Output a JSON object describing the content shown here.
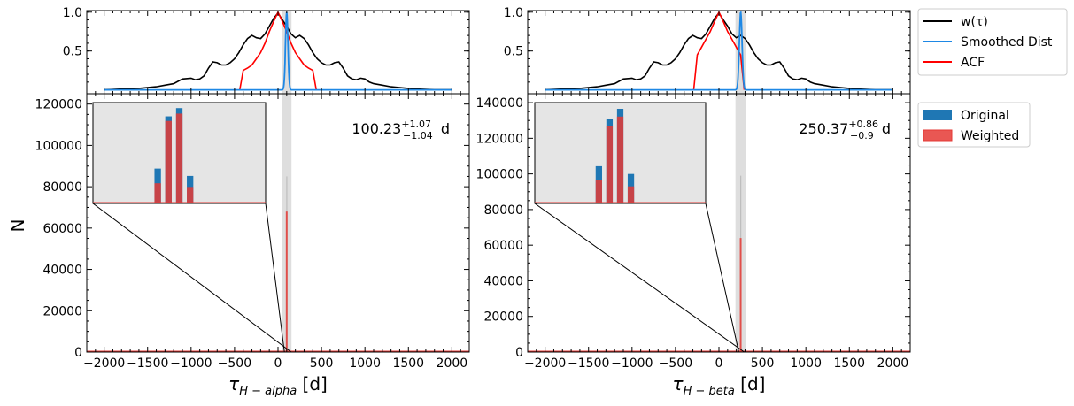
{
  "colors": {
    "wtau": "#000000",
    "smoothed": "#1e88e5",
    "acf": "#ff0000",
    "original": "#1f77b4",
    "weighted": "#e53935",
    "shade": "#d0d0d0",
    "inset_bg": "#e5e5e5"
  },
  "legend_top": [
    {
      "key": "wtau",
      "label": "w(τ)"
    },
    {
      "key": "smoothed",
      "label": "Smoothed Dist"
    },
    {
      "key": "acf",
      "label": "ACF"
    }
  ],
  "legend_bottom": [
    {
      "key": "original",
      "label": "Original"
    },
    {
      "key": "weighted",
      "label": "Weighted"
    }
  ],
  "chart_data": [
    {
      "id": "alpha",
      "type": "line+histogram",
      "xlabel_base": "τ",
      "xlabel_sub": "H − alpha",
      "xlabel_unit": "[d]",
      "ylabel": "N",
      "xlim": [
        -2200,
        2200
      ],
      "xticks": [
        -2000,
        -1500,
        -1000,
        -500,
        0,
        500,
        1000,
        1500,
        2000
      ],
      "top": {
        "ylim": [
          -0.05,
          1.02
        ],
        "yticks": [
          0.5,
          1.0
        ],
        "ytick_labels": [
          "0.5",
          "1.0"
        ],
        "wtau": {
          "x": [
            -2000,
            -1800,
            -1600,
            -1400,
            -1300,
            -1200,
            -1100,
            -1000,
            -950,
            -900,
            -850,
            -800,
            -750,
            -700,
            -650,
            -600,
            -550,
            -500,
            -450,
            -400,
            -350,
            -300,
            -250,
            -200,
            -150,
            -100,
            -50,
            0,
            50,
            100,
            150,
            200,
            250,
            300,
            350,
            400,
            450,
            500,
            550,
            600,
            650,
            700,
            750,
            800,
            850,
            900,
            950,
            1000,
            1050,
            1100,
            1200,
            1300,
            1400,
            1500,
            1600,
            1800,
            2000
          ],
          "y": [
            0.0,
            0.01,
            0.02,
            0.04,
            0.06,
            0.08,
            0.14,
            0.15,
            0.13,
            0.14,
            0.18,
            0.28,
            0.36,
            0.35,
            0.32,
            0.32,
            0.35,
            0.4,
            0.48,
            0.58,
            0.66,
            0.7,
            0.67,
            0.66,
            0.72,
            0.82,
            0.92,
            0.99,
            0.9,
            0.82,
            0.72,
            0.67,
            0.7,
            0.66,
            0.58,
            0.48,
            0.4,
            0.35,
            0.32,
            0.32,
            0.35,
            0.36,
            0.28,
            0.18,
            0.14,
            0.13,
            0.15,
            0.14,
            0.1,
            0.08,
            0.06,
            0.04,
            0.03,
            0.02,
            0.01,
            0.0,
            0.0
          ]
        },
        "acf": {
          "x": [
            -440,
            -400,
            -350,
            -300,
            -250,
            -200,
            -150,
            -100,
            -50,
            0,
            50,
            100,
            150,
            200,
            250,
            300,
            350,
            400,
            440
          ],
          "y": [
            0.0,
            0.25,
            0.28,
            0.32,
            0.4,
            0.48,
            0.6,
            0.75,
            0.88,
            1.0,
            0.88,
            0.75,
            0.6,
            0.48,
            0.4,
            0.32,
            0.28,
            0.25,
            0.0
          ]
        },
        "smoothed": {
          "peak_x": 100.23,
          "width": 14
        }
      },
      "bottom": {
        "ylim": [
          0,
          125000
        ],
        "yticks": [
          0,
          20000,
          40000,
          60000,
          80000,
          100000,
          120000
        ],
        "ytick_labels": [
          "0",
          "20000",
          "40000",
          "60000",
          "80000",
          "100000",
          "120000"
        ],
        "original": {
          "x": 100,
          "y": 85000
        },
        "weighted": {
          "x": 100,
          "y": 68000
        },
        "shade": [
          50,
          155
        ],
        "annotation": {
          "value": "100.23",
          "sup": "+1.07",
          "sub": "−1.04",
          "unit": "d"
        },
        "inset": {
          "xlim": [
            60,
            140
          ],
          "ylim": [
            0,
            110000
          ],
          "original_bins": [
            {
              "x": 90,
              "y": 38000
            },
            {
              "x": 95,
              "y": 95000
            },
            {
              "x": 100,
              "y": 104000
            },
            {
              "x": 105,
              "y": 30000
            }
          ],
          "weighted_bins": [
            {
              "x": 90,
              "y": 22000
            },
            {
              "x": 95,
              "y": 90000
            },
            {
              "x": 100,
              "y": 98000
            },
            {
              "x": 105,
              "y": 18000
            }
          ]
        }
      }
    },
    {
      "id": "beta",
      "type": "line+histogram",
      "xlabel_base": "τ",
      "xlabel_sub": "H − beta",
      "xlabel_unit": "[d]",
      "ylabel": "",
      "xlim": [
        -2200,
        2200
      ],
      "xticks": [
        -2000,
        -1500,
        -1000,
        -500,
        0,
        500,
        1000,
        1500,
        2000
      ],
      "top": {
        "ylim": [
          -0.05,
          1.02
        ],
        "yticks": [
          0.5,
          1.0
        ],
        "ytick_labels": [
          "0.5",
          "1.0"
        ],
        "wtau": {
          "x": [
            -2000,
            -1800,
            -1600,
            -1400,
            -1300,
            -1200,
            -1100,
            -1000,
            -950,
            -900,
            -850,
            -800,
            -750,
            -700,
            -650,
            -600,
            -550,
            -500,
            -450,
            -400,
            -350,
            -300,
            -250,
            -200,
            -150,
            -100,
            -50,
            0,
            50,
            100,
            150,
            200,
            250,
            300,
            350,
            400,
            450,
            500,
            550,
            600,
            650,
            700,
            750,
            800,
            850,
            900,
            950,
            1000,
            1050,
            1100,
            1200,
            1300,
            1400,
            1500,
            1600,
            1800,
            2000
          ],
          "y": [
            0.0,
            0.01,
            0.02,
            0.04,
            0.06,
            0.08,
            0.14,
            0.15,
            0.13,
            0.14,
            0.18,
            0.28,
            0.36,
            0.35,
            0.32,
            0.32,
            0.35,
            0.4,
            0.48,
            0.58,
            0.66,
            0.7,
            0.67,
            0.66,
            0.72,
            0.82,
            0.92,
            0.99,
            0.9,
            0.82,
            0.72,
            0.67,
            0.7,
            0.66,
            0.58,
            0.48,
            0.4,
            0.35,
            0.32,
            0.32,
            0.35,
            0.36,
            0.28,
            0.18,
            0.14,
            0.13,
            0.15,
            0.14,
            0.1,
            0.08,
            0.06,
            0.04,
            0.03,
            0.02,
            0.01,
            0.0,
            0.0
          ]
        },
        "acf": {
          "x": [
            -290,
            -250,
            -200,
            -150,
            -100,
            -50,
            0,
            50,
            100,
            150,
            200,
            250,
            290
          ],
          "y": [
            0.0,
            0.45,
            0.55,
            0.65,
            0.75,
            0.88,
            1.0,
            0.88,
            0.75,
            0.65,
            0.55,
            0.45,
            0.0
          ]
        },
        "smoothed": {
          "peak_x": 250.37,
          "width": 16
        }
      },
      "bottom": {
        "ylim": [
          0,
          145000
        ],
        "yticks": [
          0,
          20000,
          40000,
          60000,
          80000,
          100000,
          120000,
          140000
        ],
        "ytick_labels": [
          "0",
          "20000",
          "40000",
          "60000",
          "80000",
          "100000",
          "120000",
          "140000"
        ],
        "original": {
          "x": 250,
          "y": 99000
        },
        "weighted": {
          "x": 250,
          "y": 64000
        },
        "shade": [
          190,
          310
        ],
        "annotation": {
          "value": "250.37",
          "sup": "+0.86",
          "sub": "−0.9",
          "unit": "d"
        },
        "inset": {
          "xlim": [
            210,
            290
          ],
          "ylim": [
            0,
            130000
          ],
          "original_bins": [
            {
              "x": 240,
              "y": 48000
            },
            {
              "x": 245,
              "y": 109000
            },
            {
              "x": 250,
              "y": 122000
            },
            {
              "x": 255,
              "y": 38000
            }
          ],
          "weighted_bins": [
            {
              "x": 240,
              "y": 30000
            },
            {
              "x": 245,
              "y": 100000
            },
            {
              "x": 250,
              "y": 112000
            },
            {
              "x": 255,
              "y": 22000
            }
          ]
        }
      }
    }
  ]
}
